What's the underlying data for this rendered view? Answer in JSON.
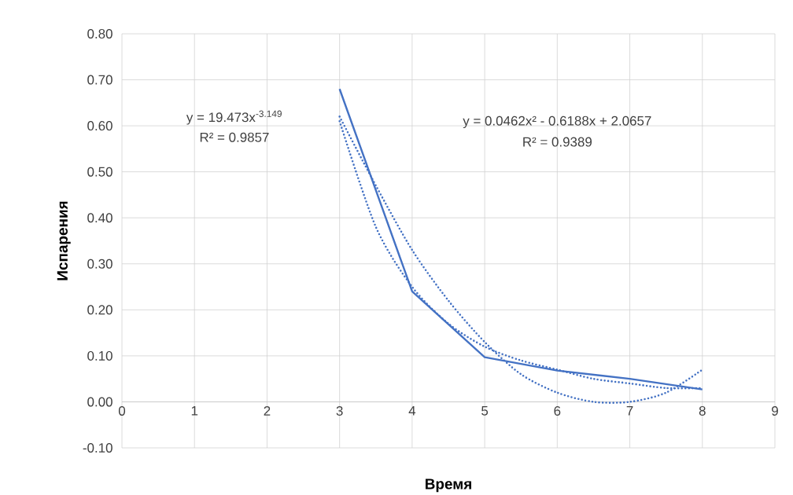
{
  "chart_data": {
    "type": "line",
    "xlabel": "Время",
    "ylabel": "Испарения",
    "xlim": [
      0,
      9
    ],
    "ylim": [
      -0.1,
      0.8
    ],
    "xticks": [
      0,
      1,
      2,
      3,
      4,
      5,
      6,
      7,
      8,
      9
    ],
    "yticks": [
      {
        "value": -0.1,
        "label": "-0.10"
      },
      {
        "value": 0,
        "label": "0.00"
      },
      {
        "value": 0.1,
        "label": "0.10"
      },
      {
        "value": 0.2,
        "label": "0.20"
      },
      {
        "value": 0.3,
        "label": "0.30"
      },
      {
        "value": 0.4,
        "label": "0.40"
      },
      {
        "value": 0.5,
        "label": "0.50"
      },
      {
        "value": 0.6,
        "label": "0.60"
      },
      {
        "value": 0.7,
        "label": "0.70"
      },
      {
        "value": 0.8,
        "label": "0.80"
      }
    ],
    "grid": true,
    "series": [
      {
        "color": "#4472c4",
        "line_style": "solid",
        "x": [
          3,
          4,
          5,
          6,
          7,
          8
        ],
        "values": [
          0.68,
          0.24,
          0.097,
          0.068,
          0.05,
          0.027
        ]
      },
      {
        "color": "#4472c4",
        "line_style": "dotted",
        "x": [
          3,
          3.5,
          4,
          4.5,
          5,
          5.5,
          6,
          6.5,
          7,
          7.5,
          8
        ],
        "values": [
          0.61,
          0.38,
          0.25,
          0.17,
          0.12,
          0.09,
          0.07,
          0.05,
          0.04,
          0.03,
          0.03
        ]
      },
      {
        "color": "#4472c4",
        "line_style": "dotted",
        "x": [
          3,
          3.5,
          4,
          4.5,
          5,
          5.5,
          6,
          6.5,
          7,
          7.5,
          8
        ],
        "values": [
          0.62,
          0.47,
          0.33,
          0.22,
          0.13,
          0.06,
          0.02,
          0.0,
          0.0,
          0.02,
          0.07
        ]
      }
    ],
    "annotations": [
      "y = 19.473x$^{-3.149}$",
      "R² = 0.9857",
      "y = 0.0462x² - 0.6188x + 2.0657",
      "R² = 0.9389"
    ]
  }
}
